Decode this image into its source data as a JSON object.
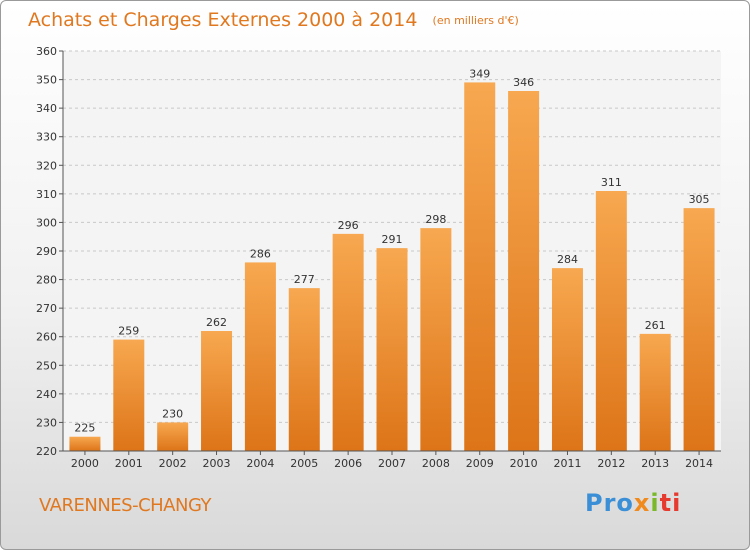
{
  "chart_data": {
    "type": "bar",
    "title": "Achats et Charges Externes 2000 à 2014",
    "subtitle": "(en milliers d'€)",
    "categories": [
      "2000",
      "2001",
      "2002",
      "2003",
      "2004",
      "2005",
      "2006",
      "2007",
      "2008",
      "2009",
      "2010",
      "2011",
      "2012",
      "2013",
      "2014"
    ],
    "values": [
      225,
      259,
      230,
      262,
      286,
      277,
      296,
      291,
      298,
      349,
      346,
      284,
      311,
      261,
      305
    ],
    "ylim": [
      220,
      360
    ],
    "yticks": [
      220,
      230,
      240,
      250,
      260,
      270,
      280,
      290,
      300,
      310,
      320,
      330,
      340,
      350,
      360
    ],
    "grid": true,
    "bar_color": "#f28c28"
  },
  "place_name": "VARENNES-CHANGY",
  "logo": {
    "parts": [
      "Pro",
      "x",
      "i",
      "ti"
    ],
    "colors": [
      "#3a8fd6",
      "#f08a1c",
      "#7ab82a",
      "#e63a2e"
    ]
  }
}
